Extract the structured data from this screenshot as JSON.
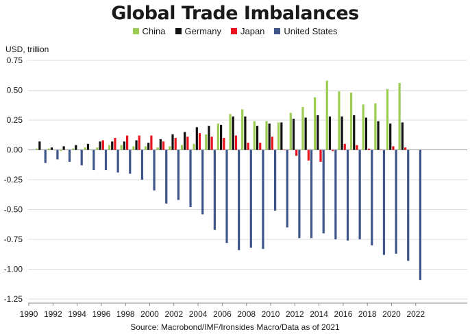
{
  "title": "Global Trade Imbalances",
  "source": "Source: Macrobond/IMF/Ironsides Macro/Data as of 2021",
  "chart_data": {
    "type": "bar",
    "title": "Global Trade Imbalances",
    "ylabel": "USD, trillion",
    "xlabel": "",
    "ylim": [
      -1.25,
      0.75
    ],
    "yticks": [
      0.75,
      0.5,
      0.25,
      0.0,
      -0.25,
      -0.5,
      -0.75,
      -1.0,
      -1.25
    ],
    "ytick_labels": [
      "0.75",
      "0.50",
      "0.25",
      "0.00",
      "-0.25",
      "-0.50",
      "-0.75",
      "-1.00",
      "-1.25"
    ],
    "xticks": [
      1990,
      1992,
      1994,
      1996,
      1998,
      2000,
      2002,
      2004,
      2006,
      2008,
      2010,
      2012,
      2014,
      2016,
      2018,
      2020,
      2022
    ],
    "grid": "horizontal",
    "legend_position": "top",
    "categories": [
      1991,
      1992,
      1993,
      1994,
      1995,
      1996,
      1997,
      1998,
      1999,
      2000,
      2001,
      2002,
      2003,
      2004,
      2005,
      2006,
      2007,
      2008,
      2009,
      2010,
      2011,
      2012,
      2013,
      2014,
      2015,
      2016,
      2017,
      2018,
      2019,
      2020,
      2021,
      2022
    ],
    "series": [
      {
        "name": "China",
        "color": "#9ccc52",
        "values": [
          0.01,
          0.01,
          -0.01,
          0.01,
          0.02,
          0.02,
          0.04,
          0.04,
          0.03,
          0.03,
          0.02,
          0.03,
          0.04,
          0.05,
          0.13,
          0.22,
          0.3,
          0.34,
          0.24,
          0.24,
          0.23,
          0.31,
          0.36,
          0.44,
          0.58,
          0.49,
          0.48,
          0.38,
          0.39,
          0.51,
          0.56,
          null
        ]
      },
      {
        "name": "Germany",
        "color": "#111111",
        "values": [
          0.07,
          0.02,
          0.03,
          0.04,
          0.05,
          0.07,
          0.07,
          0.07,
          0.08,
          0.06,
          0.09,
          0.13,
          0.15,
          0.19,
          0.2,
          0.21,
          0.28,
          0.28,
          0.2,
          0.22,
          0.23,
          0.26,
          0.27,
          0.29,
          0.28,
          0.28,
          0.29,
          0.27,
          0.24,
          0.22,
          0.23,
          null
        ]
      },
      {
        "name": "Japan",
        "color": "#e8131c",
        "values": [
          null,
          null,
          null,
          null,
          null,
          0.08,
          0.1,
          0.12,
          0.12,
          0.12,
          0.07,
          0.1,
          0.11,
          0.14,
          0.11,
          0.1,
          0.12,
          0.06,
          0.06,
          0.11,
          0.0,
          -0.05,
          -0.09,
          -0.1,
          -0.01,
          0.05,
          0.04,
          0.01,
          0.0,
          0.03,
          0.02,
          null
        ]
      },
      {
        "name": "United States",
        "color": "#3d5589",
        "values": [
          -0.11,
          -0.08,
          -0.1,
          -0.13,
          -0.17,
          -0.17,
          -0.19,
          -0.2,
          -0.25,
          -0.34,
          -0.45,
          -0.42,
          -0.48,
          -0.54,
          -0.67,
          -0.78,
          -0.84,
          -0.82,
          -0.83,
          -0.51,
          -0.65,
          -0.74,
          -0.74,
          -0.7,
          -0.75,
          -0.76,
          -0.75,
          -0.8,
          -0.88,
          -0.87,
          -0.93,
          -1.09
        ]
      }
    ]
  }
}
